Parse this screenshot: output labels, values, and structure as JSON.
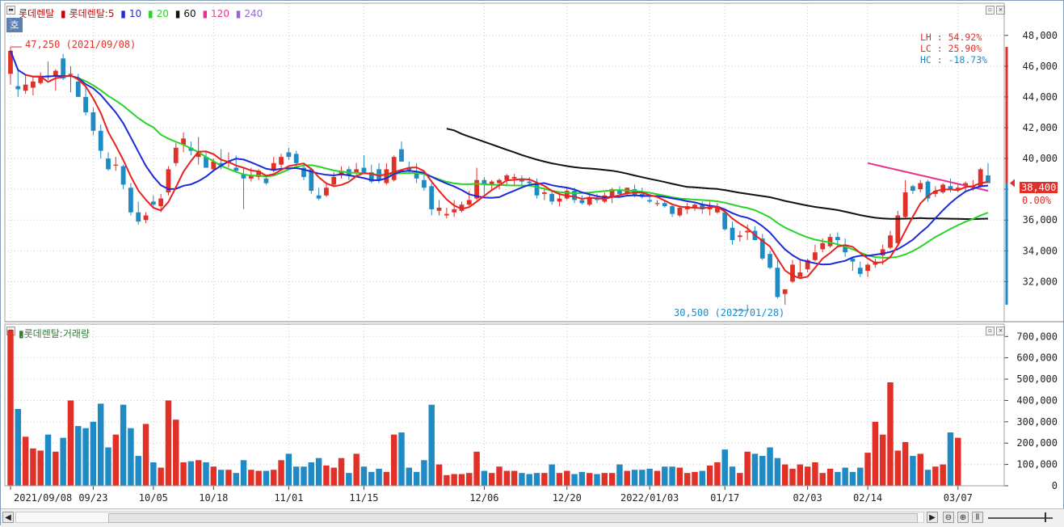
{
  "legend": {
    "name": "롯데렌탈",
    "ma_prefix": "롯데렌탈:5",
    "ma10": "10",
    "ma20": "20",
    "ma60": "60",
    "ma120": "120",
    "ma240": "240",
    "volume_title": "롯데렌탈:거래량",
    "corner_tag": "호"
  },
  "stats": {
    "lh": "LH :  54.92%",
    "lc": "LC :  25.90%",
    "hc": "HC : -18.73%"
  },
  "annotations": {
    "high": "47,250 (2021/09/08)",
    "low": "30,500 (2022/01/28)"
  },
  "current_price": "38,400",
  "current_change": "0.00%",
  "colors": {
    "up": "#e03027",
    "down": "#1f8ac4",
    "ma5": "#e8231d",
    "ma10": "#1e2ad8",
    "ma20": "#27d427",
    "ma60": "#111111",
    "ma120": "#e8318c",
    "ma240": "#9a63d8"
  },
  "chart_data": [
    {
      "type": "candlestick",
      "title": "롯데렌탈",
      "ylim": [
        29500,
        49300
      ],
      "yticks": [
        "48,000",
        "46,000",
        "44,000",
        "42,000",
        "40,000",
        "38,000",
        "36,000",
        "34,000",
        "32,000"
      ],
      "ytick_values": [
        48000,
        46000,
        44000,
        42000,
        40000,
        38000,
        36000,
        34000,
        32000
      ],
      "xticks": [
        "2021/09/08",
        "09/23",
        "10/05",
        "10/18",
        "11/01",
        "11/15",
        "12/06",
        "12/20",
        "2022/01/03",
        "01/17",
        "02/03",
        "02/14",
        "03/07"
      ],
      "xtick_index": [
        0,
        11,
        19,
        27,
        37,
        47,
        63,
        74,
        85,
        95,
        106,
        114,
        126
      ],
      "candles_ohlc": [
        [
          45500,
          47250,
          44800,
          47000
        ],
        [
          44700,
          45800,
          44000,
          44500
        ],
        [
          44400,
          45400,
          44200,
          44800
        ],
        [
          44600,
          45300,
          44100,
          45000
        ],
        [
          44900,
          45600,
          44800,
          45300
        ],
        [
          45400,
          46300,
          45100,
          45300
        ],
        [
          45300,
          45800,
          44400,
          45700
        ],
        [
          46500,
          46800,
          45100,
          45200
        ],
        [
          45500,
          46000,
          44300,
          45500
        ],
        [
          45000,
          45500,
          44100,
          44000
        ],
        [
          44000,
          44600,
          42800,
          43000
        ],
        [
          43000,
          43300,
          41500,
          41800
        ],
        [
          41800,
          42200,
          40000,
          40500
        ],
        [
          40000,
          40400,
          39200,
          39300
        ],
        [
          39600,
          40100,
          39200,
          39600
        ],
        [
          39500,
          39600,
          38000,
          38300
        ],
        [
          38100,
          38400,
          36300,
          36500
        ],
        [
          36500,
          37200,
          35700,
          35900
        ],
        [
          36000,
          36500,
          35800,
          36300
        ],
        [
          37200,
          37600,
          36800,
          37000
        ],
        [
          36900,
          37700,
          36500,
          37400
        ],
        [
          37800,
          39500,
          37600,
          39300
        ],
        [
          39700,
          41000,
          39500,
          40700
        ],
        [
          40900,
          41700,
          40400,
          41300
        ],
        [
          40700,
          41100,
          40200,
          40500
        ],
        [
          40100,
          41400,
          39600,
          40400
        ],
        [
          40100,
          40500,
          39500,
          39400
        ],
        [
          39300,
          40000,
          39200,
          39800
        ],
        [
          39700,
          40600,
          39300,
          39500
        ],
        [
          39700,
          40400,
          39400,
          39800
        ],
        [
          39400,
          40200,
          39100,
          39200
        ],
        [
          39000,
          39400,
          36700,
          38700
        ],
        [
          38700,
          39400,
          38500,
          38900
        ],
        [
          38800,
          39300,
          38600,
          39200
        ],
        [
          38700,
          38900,
          38300,
          38400
        ],
        [
          39200,
          40100,
          39100,
          39700
        ],
        [
          39600,
          40300,
          39400,
          40100
        ],
        [
          40400,
          40700,
          39900,
          40100
        ],
        [
          40300,
          40500,
          39400,
          39700
        ],
        [
          39400,
          39700,
          38600,
          38800
        ],
        [
          39300,
          39400,
          37700,
          37900
        ],
        [
          37600,
          38100,
          37300,
          37400
        ],
        [
          37600,
          38400,
          37500,
          38100
        ],
        [
          38300,
          39100,
          38200,
          38800
        ],
        [
          38900,
          39500,
          38700,
          39200
        ],
        [
          39300,
          39500,
          38600,
          38900
        ],
        [
          39100,
          39700,
          38800,
          39300
        ],
        [
          39400,
          40200,
          39000,
          39100
        ],
        [
          39100,
          39600,
          38400,
          38500
        ],
        [
          39300,
          39700,
          38400,
          38600
        ],
        [
          38400,
          39700,
          38300,
          39300
        ],
        [
          38600,
          40200,
          38500,
          40100
        ],
        [
          40600,
          41100,
          39800,
          39800
        ],
        [
          39400,
          39800,
          39000,
          39200
        ],
        [
          39100,
          39700,
          38400,
          38700
        ],
        [
          38600,
          39000,
          37900,
          38100
        ],
        [
          38200,
          38400,
          36300,
          36700
        ],
        [
          36600,
          37300,
          36300,
          36800
        ],
        [
          36300,
          36800,
          36100,
          36400
        ],
        [
          36500,
          37300,
          36200,
          36700
        ],
        [
          36600,
          37200,
          36500,
          37000
        ],
        [
          37000,
          37900,
          36900,
          37300
        ],
        [
          37400,
          39400,
          37300,
          38600
        ],
        [
          38600,
          38800,
          37700,
          38300
        ],
        [
          38300,
          38600,
          37900,
          38500
        ],
        [
          38400,
          38700,
          38000,
          38600
        ],
        [
          38600,
          39000,
          38300,
          38900
        ],
        [
          38700,
          39000,
          38200,
          38800
        ],
        [
          38700,
          38900,
          38300,
          38500
        ],
        [
          38500,
          38800,
          38200,
          38400
        ],
        [
          38400,
          38700,
          37400,
          37600
        ],
        [
          37700,
          38100,
          37300,
          37800
        ],
        [
          37700,
          37900,
          37000,
          37200
        ],
        [
          37200,
          37800,
          36900,
          37400
        ],
        [
          37400,
          38100,
          37300,
          37900
        ],
        [
          37900,
          38100,
          37100,
          37300
        ],
        [
          37300,
          37600,
          37000,
          37100
        ],
        [
          37000,
          37700,
          36900,
          37500
        ],
        [
          37400,
          37700,
          37100,
          37300
        ],
        [
          37200,
          37800,
          37100,
          37600
        ],
        [
          37500,
          38100,
          37100,
          38000
        ],
        [
          37900,
          38200,
          37600,
          37700
        ],
        [
          37700,
          38100,
          37600,
          38100
        ],
        [
          38000,
          38300,
          37500,
          37600
        ],
        [
          37700,
          38100,
          37400,
          37500
        ],
        [
          37300,
          37500,
          37100,
          37200
        ],
        [
          37100,
          37300,
          36900,
          37100
        ],
        [
          37100,
          37300,
          36800,
          36900
        ],
        [
          36900,
          37000,
          36200,
          36400
        ],
        [
          36300,
          36900,
          36200,
          36800
        ],
        [
          36700,
          37100,
          36400,
          36900
        ],
        [
          36800,
          37200,
          36600,
          37000
        ],
        [
          37000,
          37200,
          36400,
          36700
        ],
        [
          36700,
          37200,
          36300,
          36800
        ],
        [
          36500,
          37100,
          36400,
          36900
        ],
        [
          36500,
          36700,
          35300,
          35400
        ],
        [
          35500,
          35900,
          34400,
          34700
        ],
        [
          34900,
          35300,
          34600,
          35000
        ],
        [
          35200,
          35700,
          34700,
          35300
        ],
        [
          35300,
          35600,
          35000,
          34700
        ],
        [
          34800,
          35100,
          33400,
          33500
        ],
        [
          33800,
          34000,
          32800,
          32900
        ],
        [
          32900,
          33400,
          30900,
          31000
        ],
        [
          31200,
          31500,
          30500,
          31500
        ],
        [
          32000,
          33400,
          31900,
          33100
        ],
        [
          32300,
          33400,
          32300,
          32600
        ],
        [
          32800,
          33500,
          32600,
          33400
        ],
        [
          33400,
          34400,
          33300,
          33900
        ],
        [
          34100,
          34800,
          33900,
          34500
        ],
        [
          34300,
          35100,
          34200,
          34900
        ],
        [
          34900,
          35200,
          34200,
          34700
        ],
        [
          34300,
          34800,
          33600,
          33900
        ],
        [
          33500,
          33600,
          32700,
          33300
        ],
        [
          32900,
          33300,
          32300,
          32500
        ],
        [
          32700,
          33200,
          32300,
          33100
        ],
        [
          33100,
          33500,
          32900,
          33300
        ],
        [
          33700,
          34400,
          33100,
          34100
        ],
        [
          34200,
          35300,
          34100,
          35000
        ],
        [
          34500,
          36600,
          34300,
          36300
        ],
        [
          36200,
          38600,
          36100,
          37800
        ],
        [
          38200,
          38300,
          37700,
          37900
        ],
        [
          38000,
          38600,
          37800,
          38400
        ],
        [
          38500,
          38600,
          37200,
          37400
        ],
        [
          37700,
          38200,
          37500,
          37900
        ],
        [
          37800,
          38400,
          37700,
          38300
        ],
        [
          38200,
          38700,
          37800,
          38000
        ],
        [
          38000,
          38300,
          37800,
          38100
        ],
        [
          38200,
          38500,
          37800,
          38400
        ],
        [
          38100,
          38600,
          37900,
          38200
        ],
        [
          38200,
          39400,
          38100,
          39300
        ],
        [
          38900,
          39700,
          38400,
          38400
        ]
      ],
      "ma_series": [
        {
          "name": "5",
          "color": "#e8231d"
        },
        {
          "name": "10",
          "color": "#1e2ad8"
        },
        {
          "name": "20",
          "color": "#27d427"
        },
        {
          "name": "60",
          "color": "#111111"
        },
        {
          "name": "120",
          "color": "#e8318c"
        },
        {
          "name": "240",
          "color": "#9a63d8"
        }
      ],
      "annotations": [
        "47,250 (2021/09/08)",
        "30,500 (2022/01/28)"
      ],
      "last_price": 38400
    },
    {
      "type": "bar",
      "title": "롯데렌탈:거래량",
      "ylim": [
        0,
        720000
      ],
      "yticks": [
        "700,000",
        "600,000",
        "500,000",
        "400,000",
        "300,000",
        "200,000",
        "100,000",
        "0"
      ],
      "ytick_values": [
        700000,
        600000,
        500000,
        400000,
        300000,
        200000,
        100000,
        0
      ],
      "values": [
        730000,
        360000,
        230000,
        175000,
        165000,
        240000,
        160000,
        225000,
        400000,
        280000,
        270000,
        300000,
        385000,
        180000,
        240000,
        380000,
        270000,
        140000,
        290000,
        110000,
        85000,
        400000,
        310000,
        110000,
        115000,
        120000,
        110000,
        90000,
        75000,
        75000,
        60000,
        120000,
        75000,
        70000,
        70000,
        75000,
        120000,
        150000,
        90000,
        90000,
        110000,
        130000,
        95000,
        85000,
        130000,
        60000,
        150000,
        90000,
        65000,
        80000,
        65000,
        240000,
        250000,
        85000,
        65000,
        120000,
        380000,
        100000,
        50000,
        55000,
        55000,
        60000,
        160000,
        70000,
        60000,
        90000,
        70000,
        70000,
        60000,
        55000,
        60000,
        60000,
        100000,
        60000,
        70000,
        55000,
        65000,
        60000,
        55000,
        60000,
        60000,
        100000,
        70000,
        75000,
        75000,
        80000,
        70000,
        90000,
        90000,
        85000,
        60000,
        65000,
        70000,
        95000,
        110000,
        170000,
        90000,
        60000,
        160000,
        150000,
        140000,
        180000,
        130000,
        100000,
        80000,
        100000,
        90000,
        110000,
        60000,
        80000,
        65000,
        85000,
        65000,
        85000,
        155000,
        300000,
        240000,
        485000,
        165000,
        205000,
        140000,
        150000,
        75000,
        90000,
        100000,
        250000,
        225000
      ]
    }
  ]
}
